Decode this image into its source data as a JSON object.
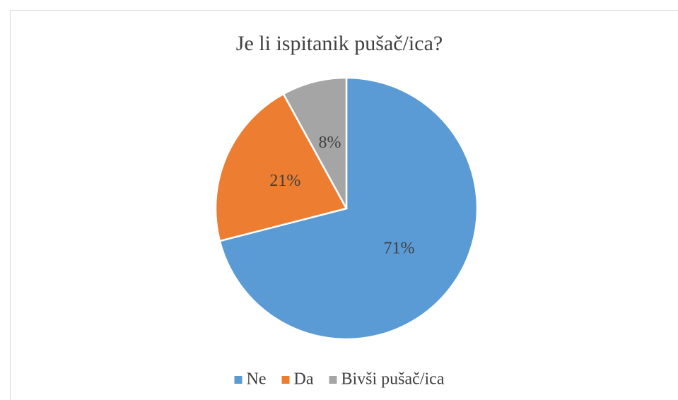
{
  "chart_data": {
    "type": "pie",
    "title": "Je li ispitanik pušač/ica?",
    "categories": [
      "Ne",
      "Da",
      "Bivši pušač/ica"
    ],
    "values": [
      71,
      21,
      8
    ],
    "value_labels": [
      "71%",
      "21%",
      "8%"
    ],
    "colors": [
      "#5b9bd5",
      "#ed7d31",
      "#a5a5a5"
    ],
    "legend": "bottom"
  }
}
